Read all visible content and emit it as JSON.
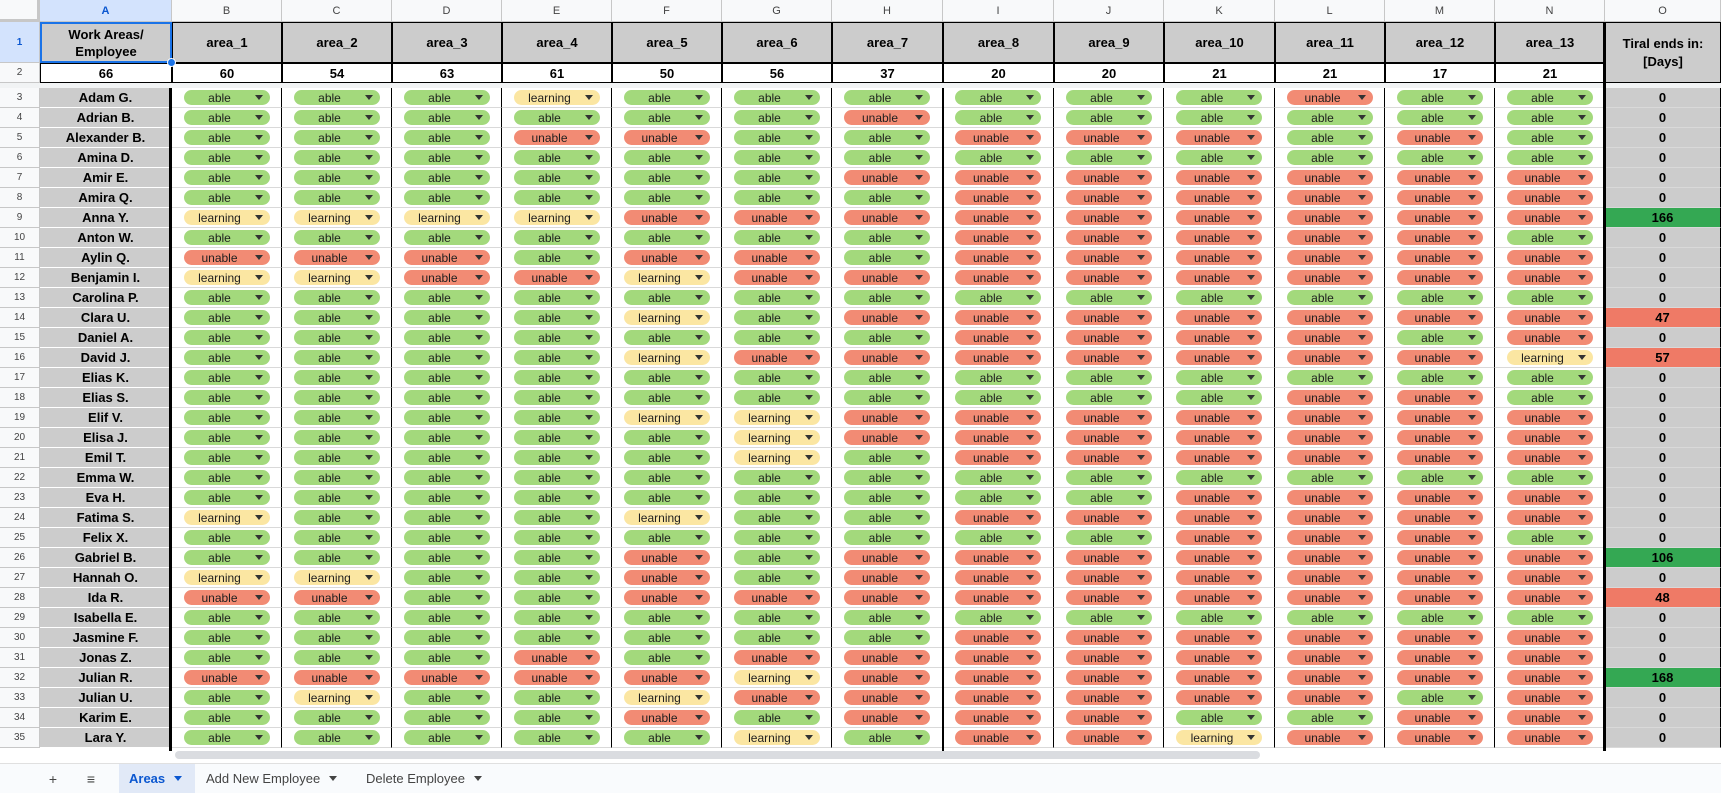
{
  "sheet": {
    "column_letters": [
      "A",
      "B",
      "C",
      "D",
      "E",
      "F",
      "G",
      "H",
      "I",
      "J",
      "K",
      "L",
      "M",
      "N",
      "O"
    ],
    "header": {
      "label_line1": "Work Areas/",
      "label_line2": "Employee",
      "total_employees": "66",
      "areas": [
        "area_1",
        "area_2",
        "area_3",
        "area_4",
        "area_5",
        "area_6",
        "area_7",
        "area_8",
        "area_9",
        "area_10",
        "area_11",
        "area_12",
        "area_13"
      ],
      "area_counts": [
        "60",
        "54",
        "63",
        "61",
        "50",
        "56",
        "37",
        "20",
        "20",
        "21",
        "21",
        "17",
        "21"
      ],
      "trial_line1": "Tiral ends in:",
      "trial_line2": "[Days]"
    },
    "rows": [
      {
        "num": "3",
        "name": "Adam G.",
        "trial": "0",
        "status": [
          "able",
          "able",
          "able",
          "learning",
          "able",
          "able",
          "able",
          "able",
          "able",
          "able",
          "unable",
          "able",
          "able"
        ]
      },
      {
        "num": "4",
        "name": "Adrian B.",
        "trial": "0",
        "status": [
          "able",
          "able",
          "able",
          "able",
          "able",
          "able",
          "unable",
          "able",
          "able",
          "able",
          "able",
          "able",
          "able"
        ]
      },
      {
        "num": "5",
        "name": "Alexander B.",
        "trial": "0",
        "status": [
          "able",
          "able",
          "able",
          "unable",
          "unable",
          "able",
          "able",
          "unable",
          "unable",
          "unable",
          "able",
          "unable",
          "able"
        ]
      },
      {
        "num": "6",
        "name": "Amina D.",
        "trial": "0",
        "status": [
          "able",
          "able",
          "able",
          "able",
          "able",
          "able",
          "able",
          "able",
          "able",
          "able",
          "able",
          "able",
          "able"
        ]
      },
      {
        "num": "7",
        "name": "Amir E.",
        "trial": "0",
        "status": [
          "able",
          "able",
          "able",
          "able",
          "able",
          "able",
          "unable",
          "unable",
          "unable",
          "unable",
          "unable",
          "unable",
          "unable"
        ]
      },
      {
        "num": "8",
        "name": "Amira Q.",
        "trial": "0",
        "status": [
          "able",
          "able",
          "able",
          "able",
          "able",
          "able",
          "able",
          "unable",
          "unable",
          "unable",
          "unable",
          "unable",
          "unable"
        ]
      },
      {
        "num": "9",
        "name": "Anna Y.",
        "trial": "166",
        "status": [
          "learning",
          "learning",
          "learning",
          "learning",
          "unable",
          "unable",
          "unable",
          "unable",
          "unable",
          "unable",
          "unable",
          "unable",
          "unable"
        ]
      },
      {
        "num": "10",
        "name": "Anton W.",
        "trial": "0",
        "status": [
          "able",
          "able",
          "able",
          "able",
          "able",
          "able",
          "able",
          "unable",
          "unable",
          "unable",
          "unable",
          "unable",
          "able"
        ]
      },
      {
        "num": "11",
        "name": "Aylin Q.",
        "trial": "0",
        "status": [
          "unable",
          "unable",
          "unable",
          "able",
          "unable",
          "unable",
          "able",
          "unable",
          "unable",
          "unable",
          "unable",
          "unable",
          "unable"
        ]
      },
      {
        "num": "12",
        "name": "Benjamin I.",
        "trial": "0",
        "status": [
          "learning",
          "learning",
          "unable",
          "unable",
          "learning",
          "unable",
          "unable",
          "unable",
          "unable",
          "unable",
          "unable",
          "unable",
          "unable"
        ]
      },
      {
        "num": "13",
        "name": "Carolina P.",
        "trial": "0",
        "status": [
          "able",
          "able",
          "able",
          "able",
          "able",
          "able",
          "able",
          "able",
          "able",
          "able",
          "able",
          "able",
          "able"
        ]
      },
      {
        "num": "14",
        "name": "Clara U.",
        "trial": "47",
        "status": [
          "able",
          "able",
          "able",
          "able",
          "learning",
          "able",
          "unable",
          "unable",
          "unable",
          "unable",
          "unable",
          "unable",
          "unable"
        ]
      },
      {
        "num": "15",
        "name": "Daniel A.",
        "trial": "0",
        "status": [
          "able",
          "able",
          "able",
          "able",
          "able",
          "able",
          "able",
          "unable",
          "unable",
          "unable",
          "unable",
          "able",
          "unable"
        ]
      },
      {
        "num": "16",
        "name": "David J.",
        "trial": "57",
        "status": [
          "able",
          "able",
          "able",
          "able",
          "learning",
          "unable",
          "unable",
          "unable",
          "unable",
          "unable",
          "unable",
          "unable",
          "learning"
        ]
      },
      {
        "num": "17",
        "name": "Elias K.",
        "trial": "0",
        "status": [
          "able",
          "able",
          "able",
          "able",
          "able",
          "able",
          "able",
          "able",
          "able",
          "able",
          "able",
          "able",
          "able"
        ]
      },
      {
        "num": "18",
        "name": "Elias S.",
        "trial": "0",
        "status": [
          "able",
          "able",
          "able",
          "able",
          "able",
          "able",
          "able",
          "able",
          "able",
          "able",
          "unable",
          "unable",
          "able"
        ]
      },
      {
        "num": "19",
        "name": "Elif V.",
        "trial": "0",
        "status": [
          "able",
          "able",
          "able",
          "able",
          "learning",
          "learning",
          "unable",
          "unable",
          "unable",
          "unable",
          "unable",
          "unable",
          "unable"
        ]
      },
      {
        "num": "20",
        "name": "Elisa J.",
        "trial": "0",
        "status": [
          "able",
          "able",
          "able",
          "able",
          "able",
          "learning",
          "unable",
          "unable",
          "unable",
          "unable",
          "unable",
          "unable",
          "unable"
        ]
      },
      {
        "num": "21",
        "name": "Emil T.",
        "trial": "0",
        "status": [
          "able",
          "able",
          "able",
          "able",
          "able",
          "learning",
          "able",
          "unable",
          "unable",
          "unable",
          "unable",
          "unable",
          "unable"
        ]
      },
      {
        "num": "22",
        "name": "Emma W.",
        "trial": "0",
        "status": [
          "able",
          "able",
          "able",
          "able",
          "able",
          "able",
          "able",
          "able",
          "able",
          "able",
          "able",
          "able",
          "able"
        ]
      },
      {
        "num": "23",
        "name": "Eva H.",
        "trial": "0",
        "status": [
          "able",
          "able",
          "able",
          "able",
          "able",
          "able",
          "able",
          "able",
          "able",
          "unable",
          "unable",
          "unable",
          "unable"
        ]
      },
      {
        "num": "24",
        "name": "Fatima S.",
        "trial": "0",
        "status": [
          "learning",
          "able",
          "able",
          "able",
          "learning",
          "able",
          "able",
          "unable",
          "unable",
          "unable",
          "unable",
          "unable",
          "unable"
        ]
      },
      {
        "num": "25",
        "name": "Felix X.",
        "trial": "0",
        "status": [
          "able",
          "able",
          "able",
          "able",
          "able",
          "able",
          "able",
          "able",
          "able",
          "unable",
          "unable",
          "unable",
          "able"
        ]
      },
      {
        "num": "26",
        "name": "Gabriel B.",
        "trial": "106",
        "status": [
          "able",
          "able",
          "able",
          "able",
          "unable",
          "able",
          "unable",
          "unable",
          "unable",
          "unable",
          "unable",
          "unable",
          "unable"
        ]
      },
      {
        "num": "27",
        "name": "Hannah O.",
        "trial": "0",
        "status": [
          "learning",
          "learning",
          "able",
          "able",
          "unable",
          "able",
          "unable",
          "unable",
          "unable",
          "unable",
          "unable",
          "unable",
          "unable"
        ]
      },
      {
        "num": "28",
        "name": "Ida R.",
        "trial": "48",
        "status": [
          "unable",
          "unable",
          "able",
          "able",
          "unable",
          "unable",
          "unable",
          "unable",
          "unable",
          "unable",
          "unable",
          "unable",
          "unable"
        ]
      },
      {
        "num": "29",
        "name": "Isabella E.",
        "trial": "0",
        "status": [
          "able",
          "able",
          "able",
          "able",
          "able",
          "able",
          "able",
          "able",
          "able",
          "able",
          "able",
          "able",
          "able"
        ]
      },
      {
        "num": "30",
        "name": "Jasmine F.",
        "trial": "0",
        "status": [
          "able",
          "able",
          "able",
          "able",
          "able",
          "able",
          "able",
          "unable",
          "unable",
          "unable",
          "unable",
          "unable",
          "unable"
        ]
      },
      {
        "num": "31",
        "name": "Jonas Z.",
        "trial": "0",
        "status": [
          "able",
          "able",
          "able",
          "unable",
          "able",
          "unable",
          "unable",
          "unable",
          "unable",
          "unable",
          "unable",
          "unable",
          "unable"
        ]
      },
      {
        "num": "32",
        "name": "Julian R.",
        "trial": "168",
        "status": [
          "unable",
          "unable",
          "unable",
          "unable",
          "unable",
          "learning",
          "unable",
          "unable",
          "unable",
          "unable",
          "unable",
          "unable",
          "unable"
        ]
      },
      {
        "num": "33",
        "name": "Julian U.",
        "trial": "0",
        "status": [
          "able",
          "learning",
          "able",
          "able",
          "learning",
          "unable",
          "unable",
          "unable",
          "unable",
          "unable",
          "unable",
          "able",
          "unable"
        ]
      },
      {
        "num": "34",
        "name": "Karim E.",
        "trial": "0",
        "status": [
          "able",
          "able",
          "able",
          "able",
          "unable",
          "able",
          "unable",
          "unable",
          "unable",
          "able",
          "able",
          "unable",
          "unable"
        ]
      },
      {
        "num": "35",
        "name": "Lara Y.",
        "trial": "0",
        "status": [
          "able",
          "able",
          "able",
          "able",
          "able",
          "learning",
          "able",
          "unable",
          "unable",
          "learning",
          "unable",
          "unable",
          "unable"
        ]
      }
    ]
  },
  "bottom_bar": {
    "add_sheet_icon": "+",
    "all_sheets_icon": "≡",
    "tabs": [
      {
        "label": "Areas",
        "active": true
      },
      {
        "label": "Add New Employee",
        "active": false
      },
      {
        "label": "Delete Employee",
        "active": false
      }
    ]
  },
  "colors": {
    "able": "#a3d97c",
    "unable": "#f28b74",
    "learning": "#fbe6a2",
    "header_gray": "#cccccc",
    "trial_green": "#34a853",
    "trial_red": "#ef7a66",
    "selection_blue": "#1a73e8"
  }
}
